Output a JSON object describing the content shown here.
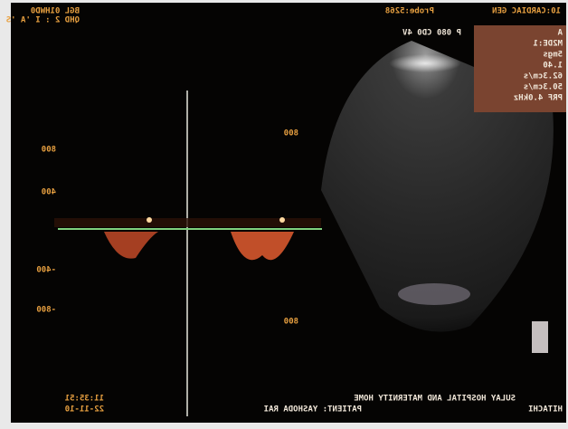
{
  "header": {
    "left": [
      "BGL 01HWD0",
      "QHD 2 : I 'A 'S"
    ],
    "center_right": "P 080 CD0 4V",
    "probe": "Probe:5268",
    "mode": "10:CARDIAC GEN"
  },
  "info_box": [
    "A",
    "M2DE:1",
    "5mgs",
    "1.40",
    "62.3cm/s",
    "50.3cm/s",
    "PRF 4.0kHz"
  ],
  "scale_left": [
    "800",
    "400",
    "-400",
    "-800"
  ],
  "scale_right": [
    "800",
    "800"
  ],
  "footer": {
    "hospital": "SULAY HOSPITAL AND MATERNITY HOME",
    "patient": "PATIENT: YASHODA RAI",
    "time": "11:35:51",
    "date": "22-11-10",
    "brand": "HITACHI"
  }
}
